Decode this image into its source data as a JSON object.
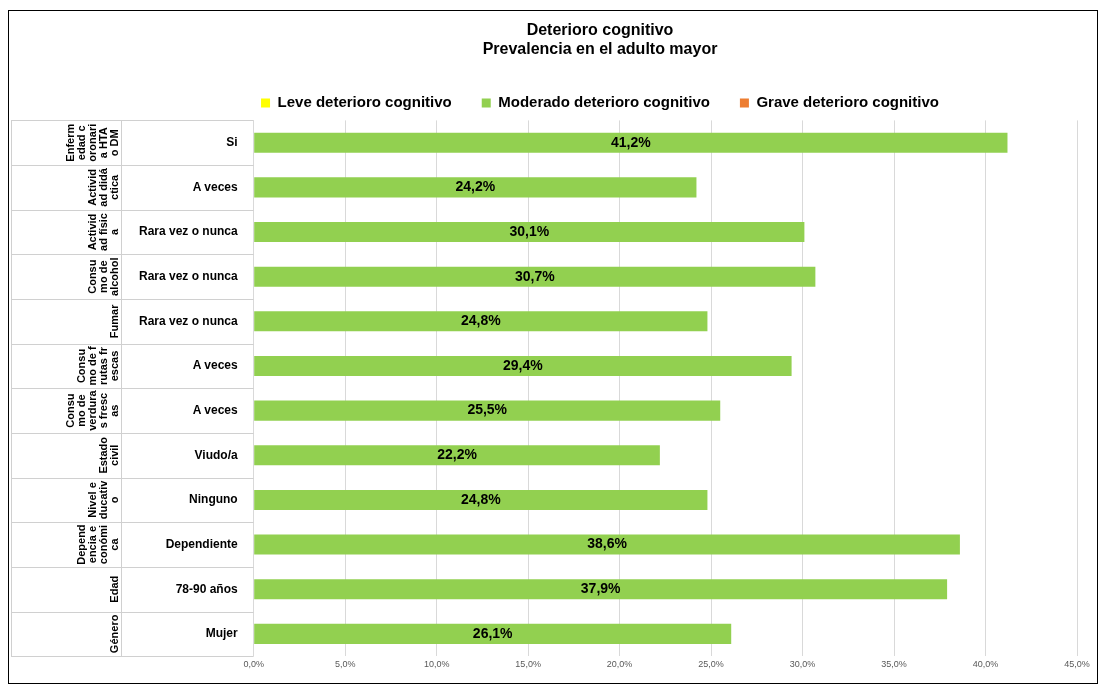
{
  "chart_data": {
    "type": "bar",
    "orientation": "horizontal",
    "title": "Deterioro cognitivo",
    "subtitle": "Prevalencia en el adulto mayor",
    "categories": [
      "Si",
      "A veces",
      "Rara vez o nunca",
      "Rara vez o nunca",
      "Rara vez o nunca",
      "A veces",
      "A veces",
      "Viudo/a",
      "Ninguno",
      "Dependiente",
      "78-90 años",
      "Mujer"
    ],
    "series": [
      {
        "name": "Leve deterioro cognitivo",
        "color": "#ffff00",
        "values": [
          null,
          null,
          null,
          null,
          null,
          null,
          null,
          null,
          null,
          null,
          null,
          null
        ]
      },
      {
        "name": "Moderado deterioro cognitivo",
        "color": "#92d050",
        "values": [
          41.2,
          24.2,
          30.1,
          30.7,
          24.8,
          29.4,
          25.5,
          22.2,
          24.8,
          38.6,
          37.9,
          26.1
        ],
        "value_labels": [
          "41,2%",
          "24,2%",
          "30,1%",
          "30,7%",
          "24,8%",
          "29,4%",
          "25,5%",
          "22,2%",
          "24,8%",
          "38,6%",
          "37,9%",
          "26,1%"
        ]
      },
      {
        "name": "Grave deterioro cognitivo",
        "color": "#ed7d31",
        "values": [
          null,
          null,
          null,
          null,
          null,
          null,
          null,
          null,
          null,
          null,
          null,
          null
        ]
      }
    ],
    "xlim": [
      0,
      45
    ],
    "xticks": [
      {
        "value": 0,
        "label": "0,0%"
      },
      {
        "value": 5,
        "label": "5,0%"
      },
      {
        "value": 10,
        "label": "10,0%"
      },
      {
        "value": 15,
        "label": "15,0%"
      },
      {
        "value": 20,
        "label": "20,0%"
      },
      {
        "value": 25,
        "label": "25,0%"
      },
      {
        "value": 30,
        "label": "30,0%"
      },
      {
        "value": 35,
        "label": "35,0%"
      },
      {
        "value": 40,
        "label": "40,0%"
      },
      {
        "value": 45,
        "label": "45,0%"
      }
    ],
    "annotations": [
      "Enfermedad coronaria HTA o DM",
      "Actividad didáctica",
      "Actividad física",
      "Consumo de alcohol",
      "Fumar",
      "Consumo de frutas frescas",
      "Consumo de verduras frescas",
      "Estado civil",
      "Nivel educativo",
      "Dependencia económica",
      "Edad",
      "Género"
    ],
    "grid": "x",
    "legend": "top"
  }
}
